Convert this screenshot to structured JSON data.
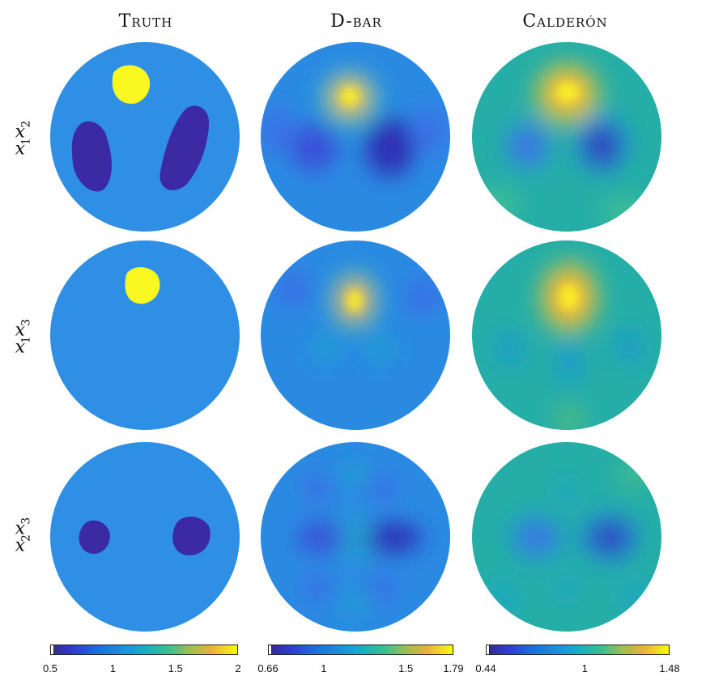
{
  "columns": [
    {
      "title": "Truth"
    },
    {
      "title": "D-bar"
    },
    {
      "title": "Calderón"
    }
  ],
  "rows": [
    {
      "label_var1": "x",
      "label_sub1": "1",
      "label_var2": "x",
      "label_sub2": "2"
    },
    {
      "label_var1": "x",
      "label_sub1": "1",
      "label_var2": "x",
      "label_sub2": "3"
    },
    {
      "label_var1": "x",
      "label_sub1": "2",
      "label_var2": "x",
      "label_sub2": "3"
    }
  ],
  "colorbars": [
    {
      "ticks": [
        "0.5",
        "1",
        "1.5",
        "2"
      ],
      "min": 0.5,
      "max": 2,
      "tick_values": [
        0.5,
        1,
        1.5,
        2
      ]
    },
    {
      "ticks": [
        "0.66",
        "1",
        "1.5",
        "1.79"
      ],
      "min": 0.66,
      "max": 1.79,
      "tick_values": [
        0.66,
        1,
        1.5,
        1.79
      ]
    },
    {
      "ticks": [
        "0.44",
        "1",
        "1.48"
      ],
      "min": 0.44,
      "max": 1.48,
      "tick_values": [
        0.44,
        1,
        1.48
      ]
    }
  ],
  "colors": {
    "parula_low": "#3f26a6",
    "parula_mid_blue": "#2e86e0",
    "parula_teal": "#22b5b0",
    "parula_yellow": "#f9f823"
  }
}
